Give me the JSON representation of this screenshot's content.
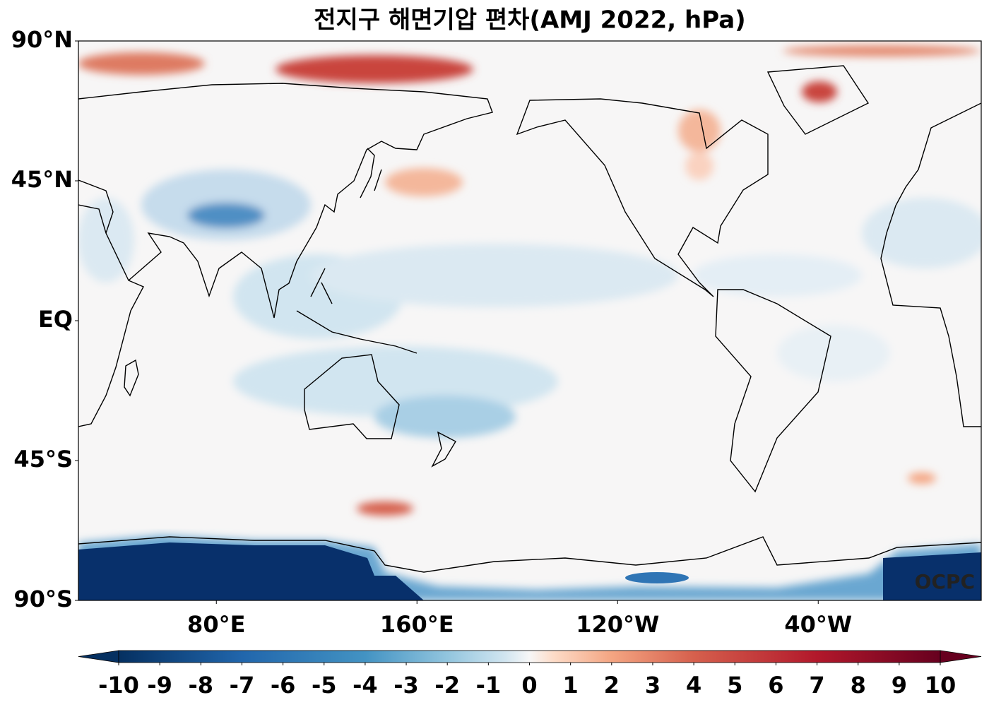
{
  "title": "전지구 해면기압 편차(AMJ 2022, hPa)",
  "map": {
    "lon_range": [
      25,
      385
    ],
    "lat_range": [
      -90,
      90
    ],
    "lat_ticks": [
      {
        "value": 90,
        "label": "90°N"
      },
      {
        "value": 45,
        "label": "45°N"
      },
      {
        "value": 0,
        "label": "EQ"
      },
      {
        "value": -45,
        "label": "45°S"
      },
      {
        "value": -90,
        "label": "90°S"
      }
    ],
    "lon_ticks": [
      {
        "value": 80,
        "label": "80°E"
      },
      {
        "value": 160,
        "label": "160°E"
      },
      {
        "value": 240,
        "label": "120°W"
      },
      {
        "value": 320,
        "label": "40°W"
      }
    ]
  },
  "colorbar": {
    "range": [
      -10,
      10
    ],
    "ticks": [
      -10,
      -9,
      -8,
      -7,
      -6,
      -5,
      -4,
      -3,
      -2,
      -1,
      0,
      1,
      2,
      3,
      4,
      5,
      6,
      7,
      8,
      9,
      10
    ]
  },
  "watermark": "OCPC"
}
